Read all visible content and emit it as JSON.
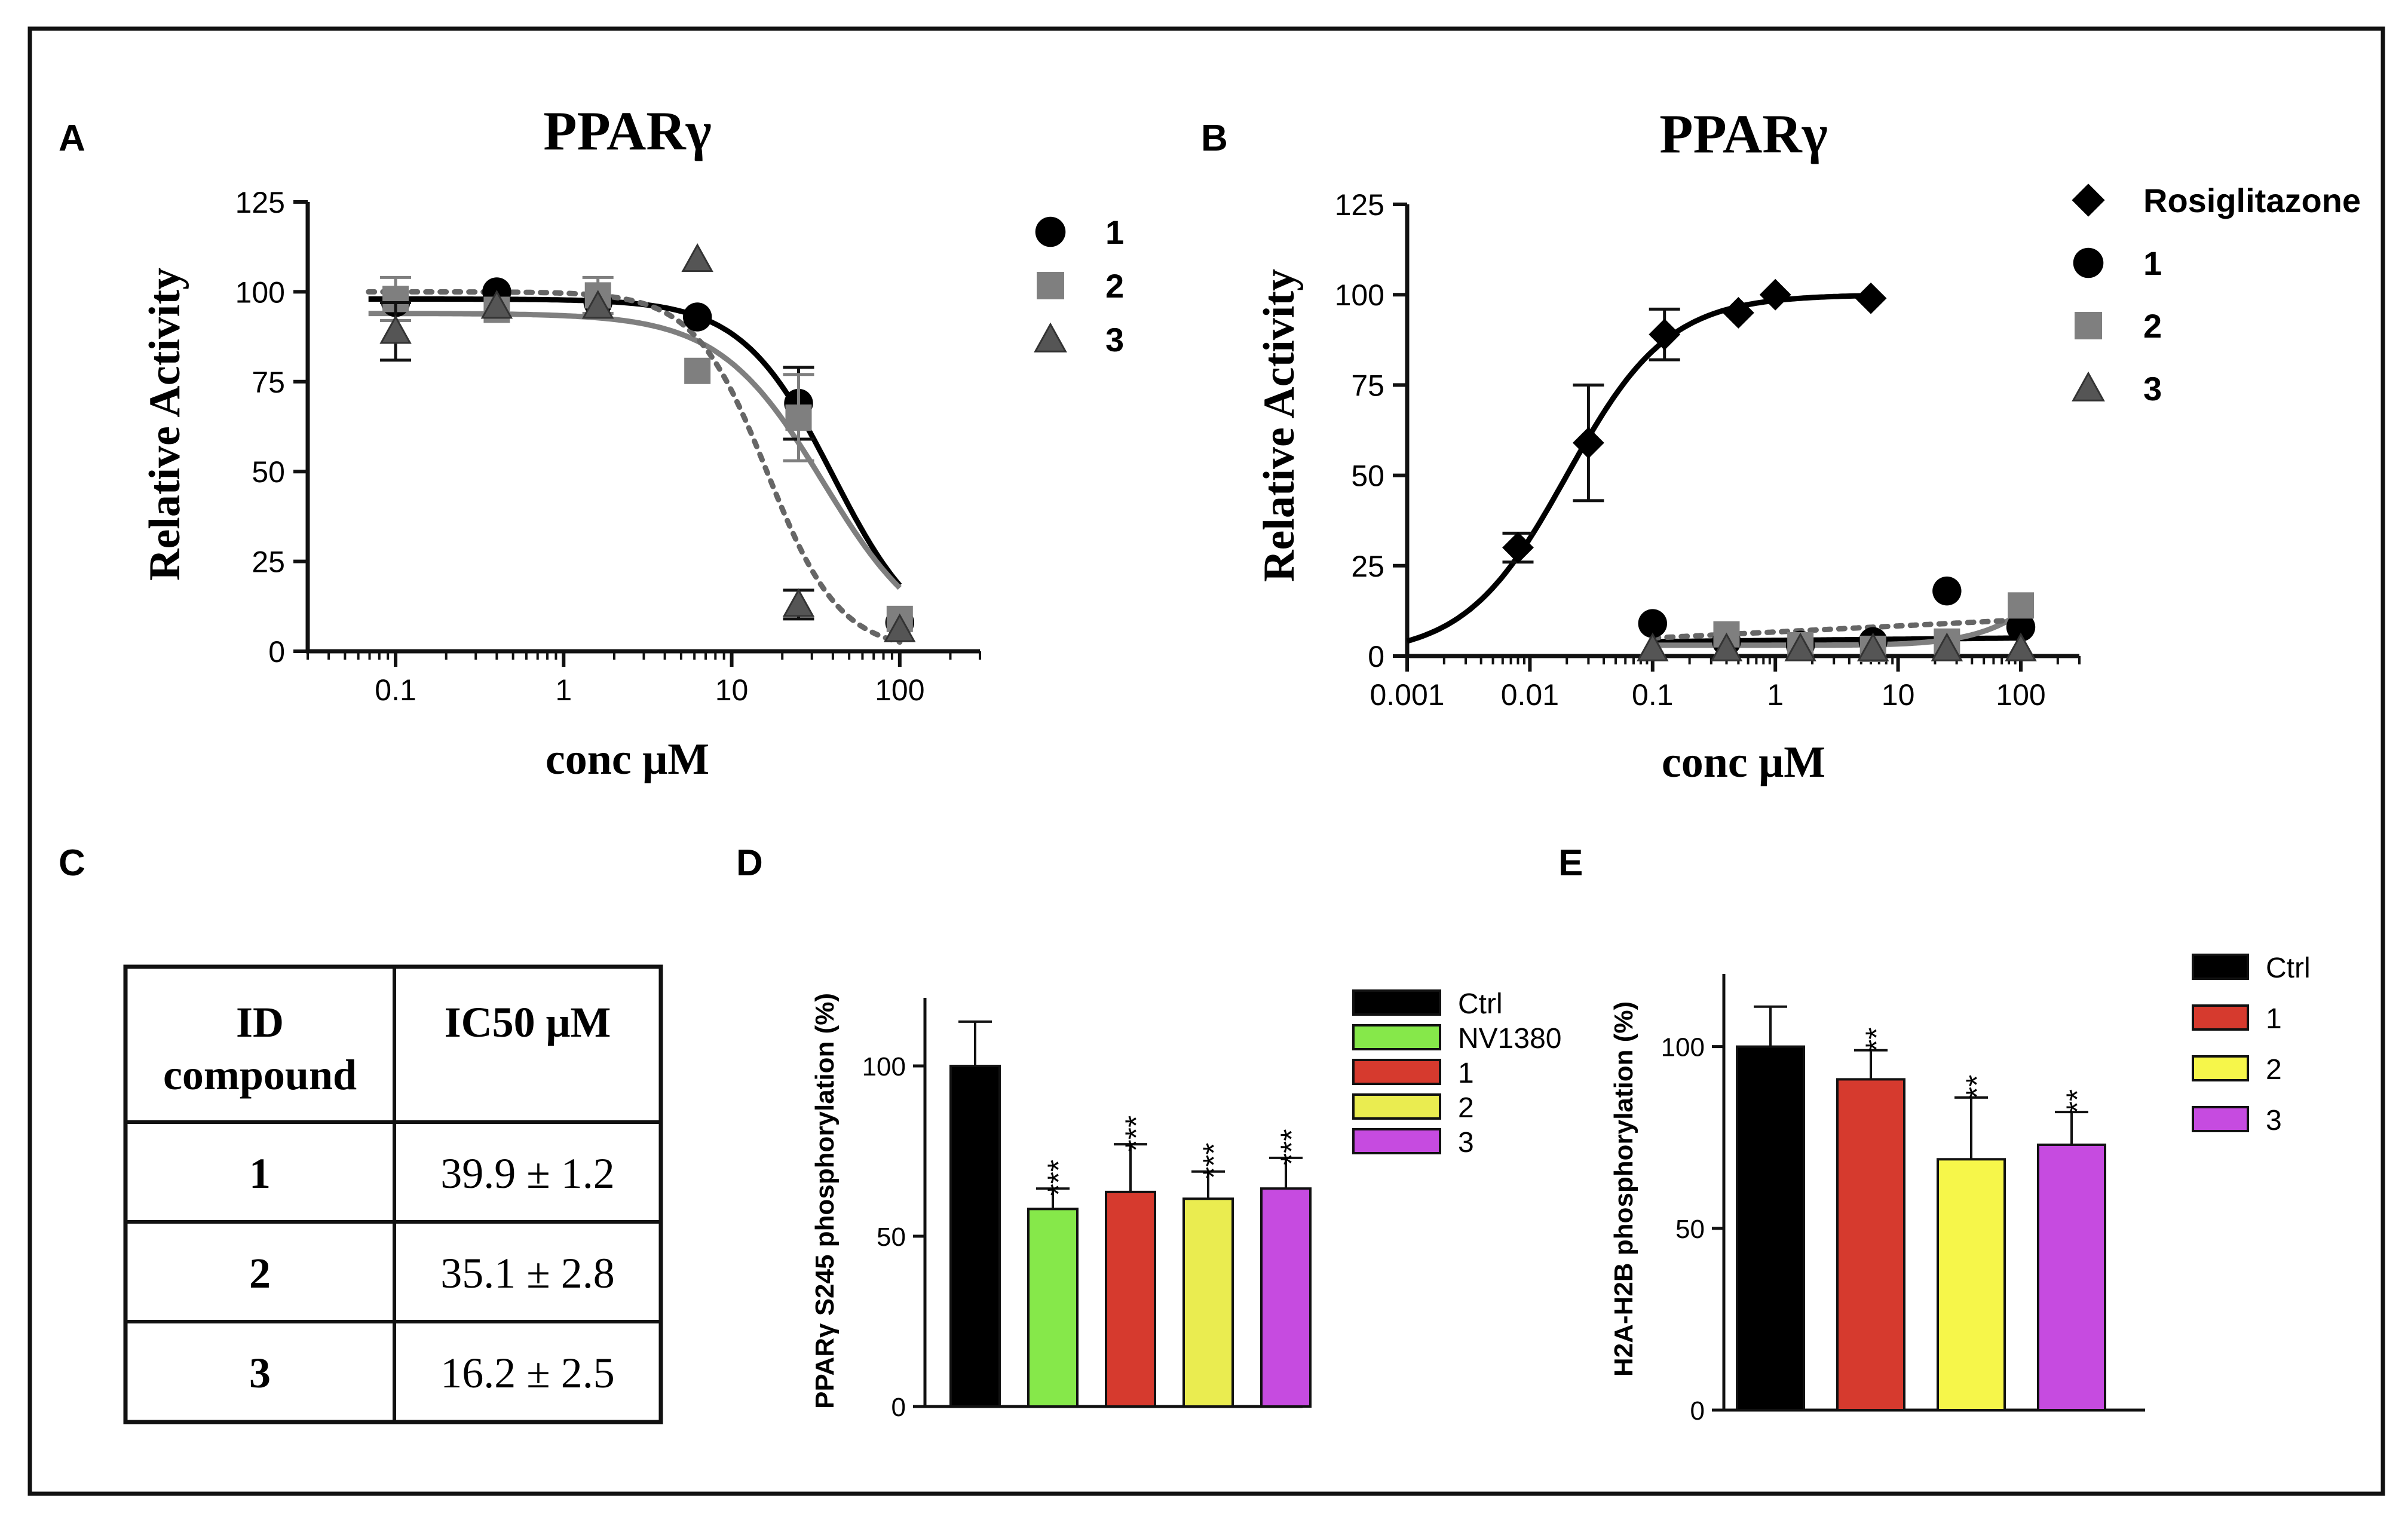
{
  "colors": {
    "black": "#000000",
    "gray": "#7f7f7f",
    "darkgray": "#555555",
    "green": "#86e84a",
    "red": "#d63a2e",
    "yellow": "#eaec50",
    "yellow_e": "#f6f64a",
    "magenta": "#c64be0"
  },
  "panel_labels": {
    "a": "A",
    "b": "B",
    "c": "C",
    "d": "D",
    "e": "E"
  },
  "chart_data": [
    {
      "id": "A",
      "type": "scatter",
      "title": "PPARγ",
      "xlabel": "conc μM",
      "ylabel": "Relative Activity",
      "xscale": "log",
      "xlim": [
        0.03,
        300
      ],
      "ylim": [
        0,
        125
      ],
      "xticks": [
        {
          "v": 0.1,
          "label": "0.1"
        },
        {
          "v": 1,
          "label": "1"
        },
        {
          "v": 10,
          "label": "10"
        },
        {
          "v": 100,
          "label": "100"
        }
      ],
      "yticks": [
        0,
        25,
        50,
        75,
        100,
        125
      ],
      "series": [
        {
          "name": "1",
          "marker": "circle",
          "color": "#000000",
          "points": [
            {
              "x": 0.1,
              "y": 97
            },
            {
              "x": 0.4,
              "y": 100
            },
            {
              "x": 1.6,
              "y": 97
            },
            {
              "x": 6.25,
              "y": 93
            },
            {
              "x": 25,
              "y": 69,
              "err": 10
            },
            {
              "x": 100,
              "y": 8
            }
          ],
          "fit": {
            "bottom": 0,
            "top": 98,
            "ic50": 39.9,
            "hill": 1.6,
            "style": "solid"
          }
        },
        {
          "name": "2",
          "marker": "square",
          "color": "#7f7f7f",
          "points": [
            {
              "x": 0.1,
              "y": 98,
              "err": 6
            },
            {
              "x": 0.4,
              "y": 95
            },
            {
              "x": 1.6,
              "y": 99,
              "err": 5
            },
            {
              "x": 6.25,
              "y": 78
            },
            {
              "x": 25,
              "y": 65,
              "err": 12
            },
            {
              "x": 100,
              "y": 9
            }
          ],
          "fit": {
            "bottom": 0,
            "top": 94,
            "ic50": 35.1,
            "hill": 1.4,
            "style": "solid"
          }
        },
        {
          "name": "3",
          "marker": "triangle",
          "color": "#555555",
          "points": [
            {
              "x": 0.1,
              "y": 89,
              "err": 8
            },
            {
              "x": 0.4,
              "y": 96
            },
            {
              "x": 1.6,
              "y": 96
            },
            {
              "x": 6.25,
              "y": 109
            },
            {
              "x": 25,
              "y": 13,
              "err": 4
            },
            {
              "x": 100,
              "y": 6
            }
          ],
          "fit": {
            "bottom": 0,
            "top": 100,
            "ic50": 16.2,
            "hill": 2.0,
            "style": "dotted"
          }
        }
      ],
      "legend": "right"
    },
    {
      "id": "B",
      "type": "scatter",
      "title": "PPARγ",
      "xlabel": "conc μM",
      "ylabel": "Relative Activity",
      "xscale": "log",
      "xlim": [
        0.001,
        300
      ],
      "ylim": [
        0,
        125
      ],
      "xticks": [
        {
          "v": 0.001,
          "label": "0.001"
        },
        {
          "v": 0.01,
          "label": "0.01"
        },
        {
          "v": 0.1,
          "label": "0.1"
        },
        {
          "v": 1,
          "label": "1"
        },
        {
          "v": 10,
          "label": "10"
        },
        {
          "v": 100,
          "label": "100"
        }
      ],
      "yticks": [
        0,
        25,
        50,
        75,
        100,
        125
      ],
      "series": [
        {
          "name": "Rosiglitazone",
          "marker": "diamond",
          "color": "#000000",
          "points": [
            {
              "x": 0.008,
              "y": 30,
              "err": 4
            },
            {
              "x": 0.03,
              "y": 59,
              "err": 16
            },
            {
              "x": 0.125,
              "y": 89,
              "err": 7
            },
            {
              "x": 0.5,
              "y": 95
            },
            {
              "x": 1,
              "y": 100
            },
            {
              "x": 6,
              "y": 99
            }
          ],
          "fit": {
            "type": "increase",
            "bottom": 0,
            "top": 100,
            "ec50": 0.02,
            "hill": 1.05,
            "xmin": 0.001,
            "xmax": 6,
            "style": "solid"
          }
        },
        {
          "name": "1",
          "marker": "circle",
          "color": "#000000",
          "points": [
            {
              "x": 0.1,
              "y": 9
            },
            {
              "x": 0.4,
              "y": 4
            },
            {
              "x": 1.6,
              "y": 3
            },
            {
              "x": 6.25,
              "y": 4
            },
            {
              "x": 25,
              "y": 18
            },
            {
              "x": 100,
              "y": 8
            }
          ],
          "fit": {
            "type": "flat",
            "y0": 4,
            "y1": 5,
            "xmin": 0.1,
            "xmax": 100,
            "style": "solid"
          }
        },
        {
          "name": "2",
          "marker": "square",
          "color": "#7f7f7f",
          "points": [
            {
              "x": 0.4,
              "y": 6
            },
            {
              "x": 1.6,
              "y": 3
            },
            {
              "x": 6.25,
              "y": 2
            },
            {
              "x": 25,
              "y": 4
            },
            {
              "x": 100,
              "y": 14
            }
          ],
          "fit": {
            "type": "rise",
            "y0": 3,
            "y1": 12,
            "xmin": 0.1,
            "xmax": 100,
            "style": "solid"
          }
        },
        {
          "name": "3",
          "marker": "triangle",
          "color": "#555555",
          "points": [
            {
              "x": 0.1,
              "y": 2
            },
            {
              "x": 0.4,
              "y": 2
            },
            {
              "x": 1.6,
              "y": 2
            },
            {
              "x": 6.25,
              "y": 2
            },
            {
              "x": 25,
              "y": 2
            },
            {
              "x": 100,
              "y": 2
            }
          ],
          "fit": {
            "type": "flat",
            "y0": 5,
            "y1": 10,
            "xmin": 0.1,
            "xmax": 100,
            "style": "dotted"
          }
        }
      ],
      "legend": "right"
    },
    {
      "id": "C",
      "type": "table",
      "headers": [
        [
          "ID",
          "compound"
        ],
        [
          "IC50 μM"
        ]
      ],
      "rows": [
        {
          "id": "1",
          "ic50": "39.9 ± 1.2"
        },
        {
          "id": "2",
          "ic50": "35.1 ± 2.8"
        },
        {
          "id": "3",
          "ic50": "16.2 ± 2.5"
        }
      ]
    },
    {
      "id": "D",
      "type": "bar",
      "ylabel": "PPARγ S245 phosphorylation (%)",
      "ylim": [
        0,
        120
      ],
      "yticks": [
        0,
        50,
        100
      ],
      "categories": [
        "Ctrl",
        "NV1380",
        "1",
        "2",
        "3"
      ],
      "values": [
        100,
        58,
        63,
        61,
        64
      ],
      "errors": [
        13,
        6,
        14,
        8,
        9
      ],
      "significance": [
        "",
        "***",
        "***",
        "***",
        "***"
      ],
      "bar_colors": [
        "#000000",
        "#86e84a",
        "#d63a2e",
        "#eaec50",
        "#c64be0"
      ],
      "legend": "right"
    },
    {
      "id": "E",
      "type": "bar",
      "ylabel": "H2A-H2B phosphorylation (%)",
      "ylim": [
        0,
        120
      ],
      "yticks": [
        0,
        50,
        100
      ],
      "categories": [
        "Ctrl",
        "1",
        "2",
        "3"
      ],
      "values": [
        100,
        91,
        69,
        73
      ],
      "errors": [
        11,
        8,
        17,
        9
      ],
      "significance": [
        "",
        "**",
        "**",
        "**"
      ],
      "bar_colors": [
        "#000000",
        "#d63a2e",
        "#f6f64a",
        "#c64be0"
      ],
      "legend": "right"
    }
  ]
}
